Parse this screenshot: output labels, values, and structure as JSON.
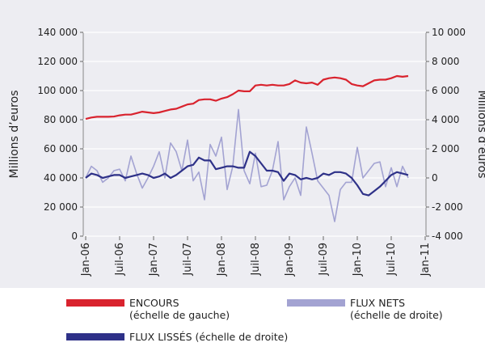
{
  "chart_data": {
    "type": "line",
    "ylabel": "Millions d’euros",
    "y2label": "Millions d’euros",
    "categories": [
      "Jan-06",
      null,
      null,
      null,
      null,
      null,
      "Juil-06",
      null,
      null,
      null,
      null,
      null,
      "Jan-07",
      null,
      null,
      null,
      null,
      null,
      "Juil-07",
      null,
      null,
      null,
      null,
      null,
      "Jan-08",
      null,
      null,
      null,
      null,
      null,
      "Juil-08",
      null,
      null,
      null,
      null,
      null,
      "Jan-09",
      null,
      null,
      null,
      null,
      null,
      "Juil-09",
      null,
      null,
      null,
      null,
      null,
      "Jan-10",
      null,
      null,
      null,
      null,
      null,
      "Juil-10",
      null,
      null,
      null,
      null,
      null,
      "Jan-11"
    ],
    "series": [
      {
        "name": "ENCOURS\n(échelle de gauche)",
        "color": "#d9232e",
        "axis": "y",
        "values": [
          80500,
          81500,
          82000,
          82000,
          82000,
          82200,
          83000,
          83500,
          83500,
          84500,
          85500,
          85000,
          84500,
          85000,
          86000,
          87000,
          87500,
          89000,
          90500,
          91000,
          93500,
          94000,
          94000,
          93000,
          94500,
          95500,
          97500,
          100000,
          99500,
          99500,
          103500,
          104000,
          103500,
          104000,
          103500,
          103500,
          104500,
          107000,
          105500,
          105000,
          105500,
          104000,
          107500,
          108500,
          109000,
          108500,
          107500,
          104500,
          103500,
          103000,
          105000,
          107000,
          107500,
          107500,
          108500,
          110000,
          109500,
          110000,
          null,
          null,
          null
        ]
      },
      {
        "name": "FLUX NETS\n(échelle de droite)",
        "color": "#a3a3d2",
        "axis": "y2",
        "values": [
          0,
          800,
          500,
          -300,
          0,
          500,
          600,
          -200,
          1500,
          300,
          -700,
          0,
          800,
          1800,
          0,
          2400,
          1800,
          500,
          2600,
          -200,
          400,
          -1500,
          2300,
          1500,
          2800,
          -800,
          800,
          4700,
          500,
          -400,
          1700,
          -600,
          -500,
          500,
          2500,
          -1500,
          -600,
          0,
          -1200,
          3500,
          1700,
          -200,
          -700,
          -1200,
          -3000,
          -800,
          -300,
          -300,
          2100,
          0,
          500,
          1000,
          1100,
          -600,
          700,
          -600,
          800,
          0,
          null,
          null,
          null
        ]
      },
      {
        "name": "FLUX LISSÉS (échelle de droite)",
        "color": "#2e3188",
        "axis": "y2",
        "values": [
          0,
          300,
          200,
          0,
          100,
          200,
          200,
          0,
          100,
          200,
          300,
          200,
          0,
          100,
          300,
          0,
          200,
          500,
          800,
          900,
          1400,
          1200,
          1200,
          600,
          700,
          800,
          800,
          700,
          700,
          1800,
          1500,
          1000,
          500,
          500,
          400,
          -200,
          300,
          200,
          -100,
          0,
          -100,
          0,
          300,
          200,
          400,
          400,
          300,
          0,
          -500,
          -1100,
          -1200,
          -900,
          -600,
          -200,
          200,
          400,
          300,
          200,
          null,
          null,
          null
        ]
      }
    ],
    "ylim": [
      0,
      140000
    ],
    "yticks": [
      0,
      {
        "value": 20000,
        "label": "20 000"
      },
      {
        "value": 40000,
        "label": "40 000"
      },
      {
        "value": 60000,
        "label": "60 000"
      },
      {
        "value": 80000,
        "label": "80 000"
      },
      {
        "value": 100000,
        "label": "100 000"
      },
      {
        "value": 120000,
        "label": "120 000"
      },
      {
        "value": 140000,
        "label": "140 000"
      }
    ],
    "y2lim": [
      -4000,
      10000
    ],
    "y2ticks": [
      {
        "value": -4000,
        "label": "-4 000"
      },
      {
        "value": -2000,
        "label": "-2 000"
      },
      0,
      {
        "value": 2000,
        "label": "2 000"
      },
      {
        "value": 4000,
        "label": "4 000"
      },
      {
        "value": 6000,
        "label": "6 000"
      },
      {
        "value": 8000,
        "label": "8 000"
      },
      {
        "value": 10000,
        "label": "10 000"
      }
    ],
    "grid": true
  }
}
